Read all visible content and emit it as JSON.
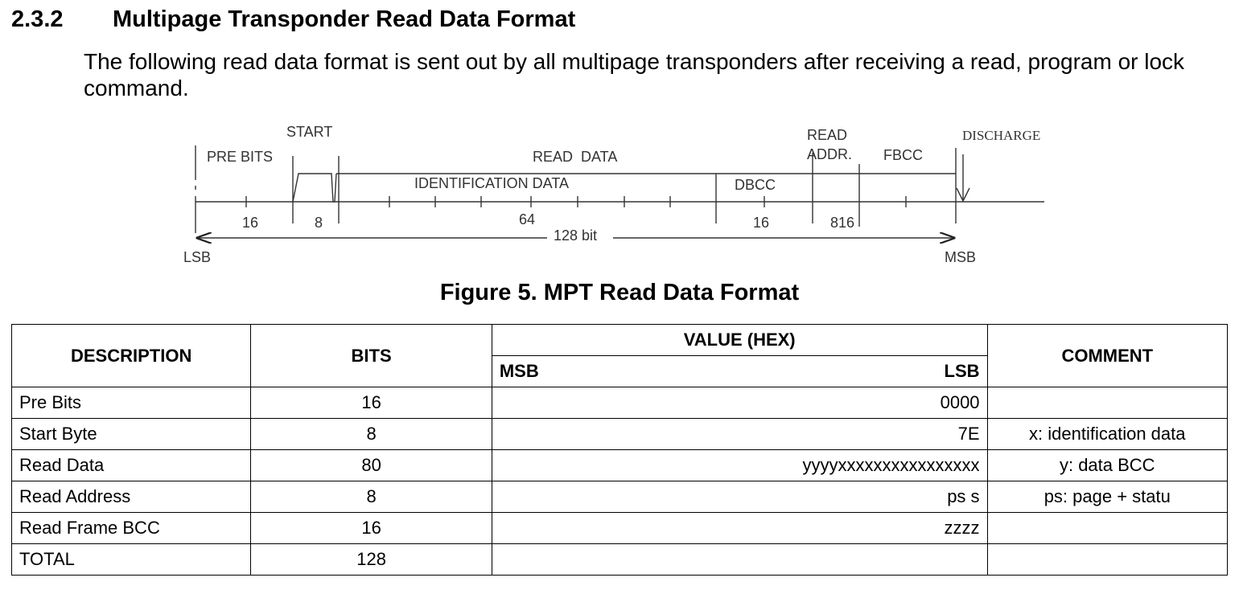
{
  "section": {
    "number": "2.3.2",
    "title": "Multipage Transponder Read Data Format",
    "intro": "The following read data format is sent out by all multipage transponders after receiving a read, program or lock command."
  },
  "diagram": {
    "labels": {
      "pre_bits": "PRE BITS",
      "start": "START",
      "read_data": "READ  DATA",
      "identification_data": "IDENTIFICATION DATA",
      "dbcc": "DBCC",
      "read_addr_line1": "READ",
      "read_addr_line2": "ADDR.",
      "fbcc": "FBCC",
      "discharge": "DISCHARGE",
      "lsb": "LSB",
      "msb": "MSB",
      "total_bits": "128 bit"
    },
    "bit_counts": [
      "16",
      "8",
      "64",
      "16",
      "816"
    ]
  },
  "figure_caption": "Figure 5. MPT Read Data Format",
  "table": {
    "headers": {
      "description": "DESCRIPTION",
      "bits": "BITS",
      "value": "VALUE (HEX)",
      "msb": "MSB",
      "lsb": "LSB",
      "comment": "COMMENT"
    },
    "rows": [
      {
        "description": "Pre Bits",
        "bits": "16",
        "value": "0000",
        "comment": ""
      },
      {
        "description": "Start Byte",
        "bits": "8",
        "value": "7E",
        "comment": "x: identification data"
      },
      {
        "description": "Read Data",
        "bits": "80",
        "value": "yyyyxxxxxxxxxxxxxxxx",
        "comment": "y: data BCC"
      },
      {
        "description": "Read Address",
        "bits": "8",
        "value": "ps s",
        "comment": "ps: page + statu"
      },
      {
        "description": "Read Frame BCC",
        "bits": "16",
        "value": "zzzz",
        "comment": ""
      },
      {
        "description": "TOTAL",
        "bits": "128",
        "value": "",
        "comment": ""
      }
    ]
  }
}
